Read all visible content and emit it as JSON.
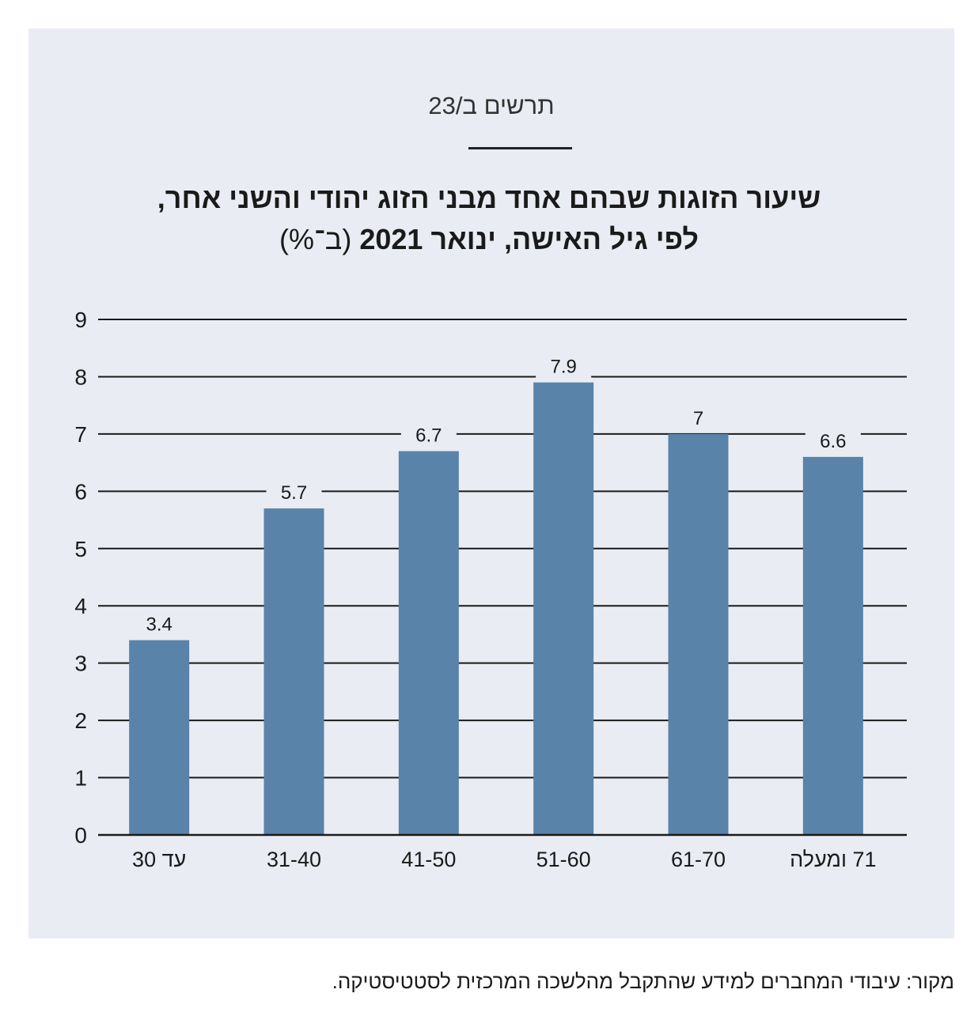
{
  "figure_label": "תרשים ב/23",
  "title": {
    "line1": "שיעור הזוגות שבהם אחד מבני הזוג יהודי והשני אחר,",
    "line2_bold": "לפי גיל האישה, ינואר 2021",
    "line2_unit": "(ב־%)"
  },
  "chart_data": {
    "type": "bar",
    "categories": [
      "עד 30",
      "31-40",
      "41-50",
      "51-60",
      "61-70",
      "71 ומעלה"
    ],
    "values": [
      3.4,
      5.7,
      6.7,
      7.9,
      7,
      6.6
    ],
    "value_labels": [
      "3.4",
      "5.7",
      "6.7",
      "7.9",
      "7",
      "6.6"
    ],
    "ylim": [
      0,
      9
    ],
    "yticks": [
      "0",
      "1",
      "2",
      "3",
      "4",
      "5",
      "6",
      "7",
      "8",
      "9"
    ],
    "xlabel": "",
    "ylabel": "",
    "grid": true,
    "bar_color": "#5983a9",
    "grid_color": "#1a1a1a"
  },
  "source": "מקור: עיבודי המחברים למידע שהתקבל מהלשכה המרכזית לסטטיסטיקה."
}
